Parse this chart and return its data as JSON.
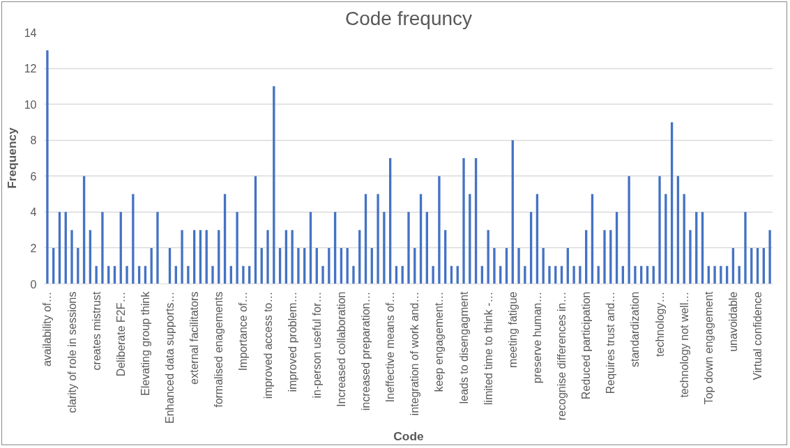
{
  "chart_data": {
    "type": "bar",
    "title": "Code frequncy",
    "xlabel": "Code",
    "ylabel": "Frequency",
    "categories": [
      "availability of…",
      null,
      null,
      null,
      "clarity of role in sessions",
      null,
      null,
      null,
      "creates mistrust",
      null,
      null,
      null,
      "Deliberate F2F…",
      null,
      null,
      null,
      "Elevating group think",
      null,
      null,
      null,
      "Enhanced data supports…",
      null,
      null,
      null,
      "external facilitators",
      null,
      null,
      null,
      "formalised enagements",
      null,
      null,
      null,
      "Importance of…",
      null,
      null,
      null,
      "improved access to…",
      null,
      null,
      null,
      "improved problem…",
      null,
      null,
      null,
      "in-person useful for…",
      null,
      null,
      null,
      "Increased collaboration",
      null,
      null,
      null,
      "increased preparation…",
      null,
      null,
      null,
      "Ineffective means of…",
      null,
      null,
      null,
      "integration of work and…",
      null,
      null,
      null,
      "keep engagement…",
      null,
      null,
      null,
      "leads to disengagment",
      null,
      null,
      null,
      "limited time to think -…",
      null,
      null,
      null,
      "meeting fatigue",
      null,
      null,
      null,
      "preserve human…",
      null,
      null,
      null,
      "recognise differences in…",
      null,
      null,
      null,
      "Reduced participation",
      null,
      null,
      null,
      "Requires trust and…",
      null,
      null,
      null,
      "standardization",
      null,
      null,
      null,
      "technology…",
      null,
      null,
      null,
      "technology not well…",
      null,
      null,
      null,
      "Top down engagement",
      null,
      null,
      null,
      "unavoidable",
      null,
      null,
      null,
      "Virtual confidence",
      null,
      null
    ],
    "values": [
      13,
      2,
      4,
      4,
      3,
      2,
      6,
      3,
      1,
      4,
      1,
      1,
      4,
      1,
      5,
      1,
      1,
      2,
      4,
      0,
      2,
      1,
      3,
      1,
      3,
      3,
      3,
      1,
      3,
      5,
      1,
      4,
      1,
      1,
      6,
      2,
      3,
      11,
      2,
      3,
      3,
      2,
      2,
      4,
      2,
      1,
      2,
      4,
      2,
      2,
      1,
      3,
      5,
      2,
      5,
      4,
      7,
      1,
      1,
      4,
      2,
      5,
      4,
      1,
      6,
      3,
      1,
      1,
      7,
      5,
      7,
      1,
      3,
      2,
      1,
      2,
      8,
      2,
      1,
      4,
      5,
      2,
      1,
      1,
      1,
      2,
      1,
      1,
      3,
      5,
      1,
      3,
      3,
      4,
      1,
      6,
      1,
      1,
      1,
      1,
      6,
      5,
      9,
      6,
      5,
      3,
      4,
      4,
      1,
      1,
      1,
      1,
      2,
      1,
      4,
      2,
      2,
      2,
      3
    ],
    "color": "#4472c4",
    "ylim": [
      0,
      14
    ],
    "yticks": [
      0,
      2,
      4,
      6,
      8,
      10,
      12,
      14
    ],
    "grid": "y"
  }
}
